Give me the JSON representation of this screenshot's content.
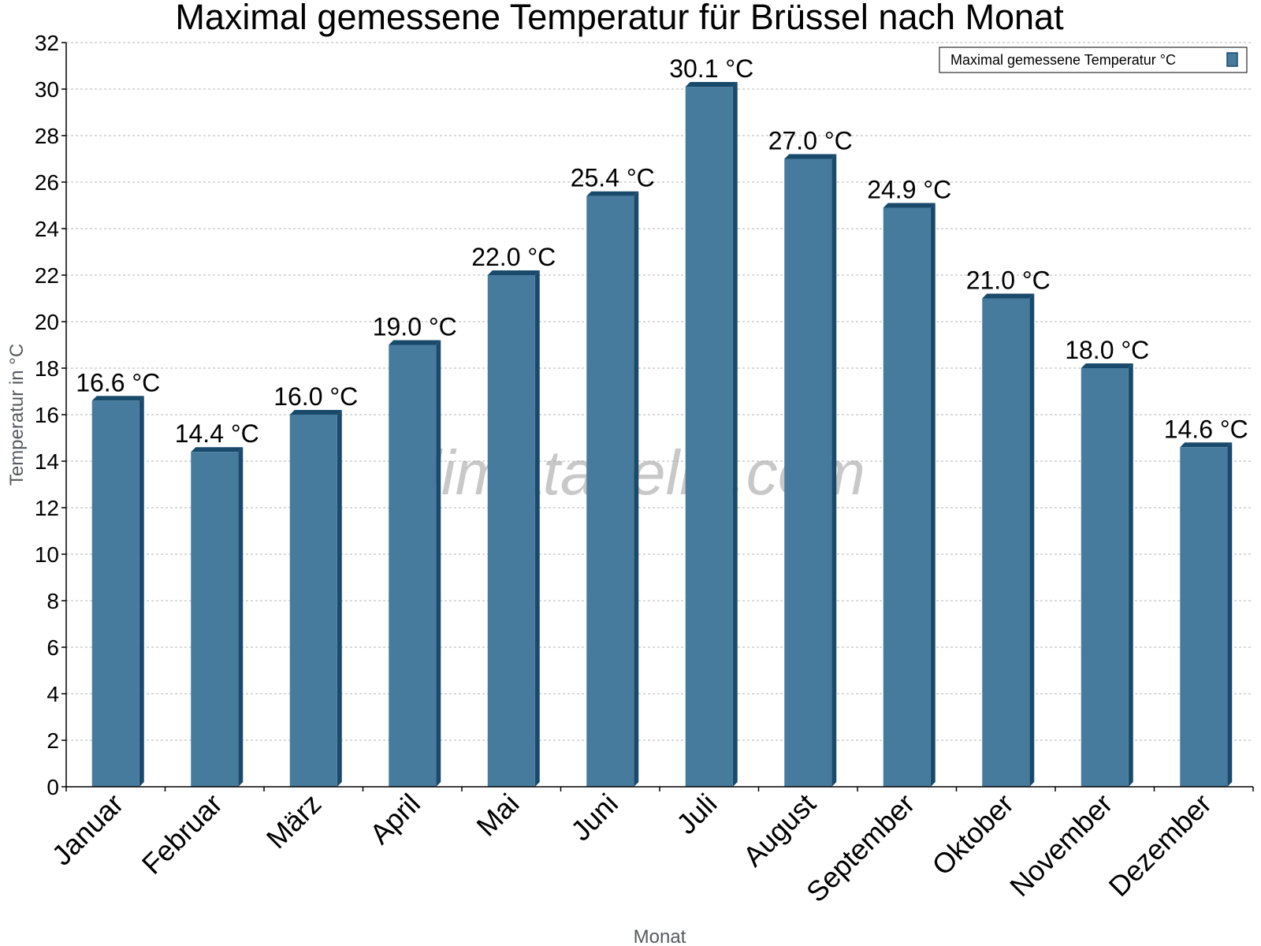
{
  "chart_data": {
    "type": "bar",
    "title": "Maximal gemessene Temperatur für Brüssel nach Monat",
    "xlabel": "Monat",
    "ylabel": "Temperatur in °C",
    "categories": [
      "Januar",
      "Februar",
      "März",
      "April",
      "Mai",
      "Juni",
      "Juli",
      "August",
      "September",
      "Oktober",
      "November",
      "Dezember"
    ],
    "series": [
      {
        "name": "Maximal gemessene Temperatur °C",
        "values": [
          16.6,
          14.4,
          16.0,
          19.0,
          22.0,
          25.4,
          30.1,
          27.0,
          24.9,
          21.0,
          18.0,
          14.6
        ],
        "data_labels": [
          "16.6 °C",
          "14.4 °C",
          "16.0 °C",
          "19.0 °C",
          "22.0 °C",
          "25.4 °C",
          "30.1 °C",
          "27.0 °C",
          "24.9 °C",
          "21.0 °C",
          "18.0 °C",
          "14.6 °C"
        ]
      }
    ],
    "ylim": [
      0,
      32
    ],
    "yticks": [
      0,
      2,
      4,
      6,
      8,
      10,
      12,
      14,
      16,
      18,
      20,
      22,
      24,
      26,
      28,
      30,
      32
    ],
    "grid": true,
    "legend_position": "top-right",
    "colors": {
      "bar_face": "#467b9e",
      "bar_edge": "#1a4a6b"
    },
    "watermark": "klimatabelle.com"
  }
}
